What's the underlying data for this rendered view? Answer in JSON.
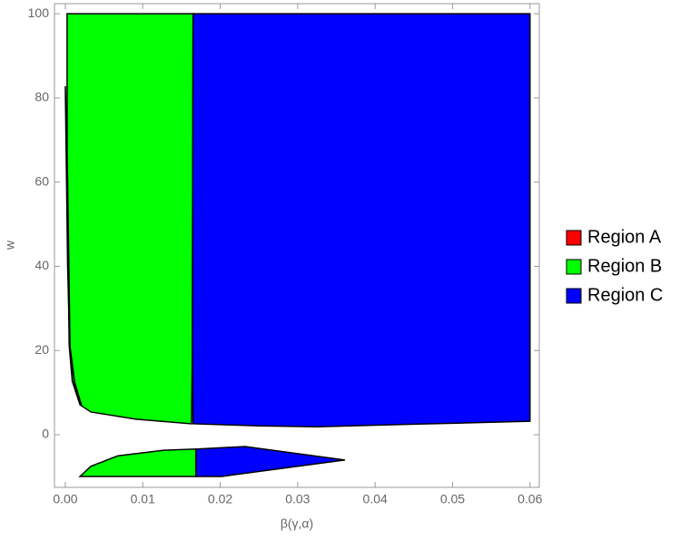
{
  "chart_data": {
    "type": "region",
    "x_label": "β(γ,α)",
    "y_label": "w",
    "xlim": [
      -0.0014,
      0.0612
    ],
    "ylim": [
      -12.5,
      102.4
    ],
    "xticks": [
      {
        "value": 0,
        "label": "0.00"
      },
      {
        "value": 0.01,
        "label": "0.01"
      },
      {
        "value": 0.02,
        "label": "0.02"
      },
      {
        "value": 0.03,
        "label": "0.03"
      },
      {
        "value": 0.04,
        "label": "0.04"
      },
      {
        "value": 0.05,
        "label": "0.05"
      },
      {
        "value": 0.06,
        "label": "0.06"
      }
    ],
    "yticks": [
      0,
      20,
      40,
      60,
      80,
      100
    ],
    "legend": "right",
    "series": [
      {
        "name": "Region B",
        "color": "#00ff00",
        "x": [
          0.00023,
          0.0165,
          0.0164,
          0.0163,
          0.0091,
          0.0033,
          0.0019,
          0.0009,
          0.0005,
          0.00023,
          null,
          0.0019,
          0.01688,
          0.01688,
          0.0127,
          0.0068,
          0.0033
        ],
        "y": [
          100,
          100,
          20,
          2.6,
          3.7,
          5.4,
          7.1,
          12.7,
          21.3,
          60,
          null,
          -9.9,
          -9.9,
          -3.4,
          -3.7,
          -5.0,
          -7.5
        ]
      },
      {
        "name": "Region C",
        "color": "#0000ff",
        "x": [
          0.0165,
          0.06,
          0.06,
          0.045,
          0.0325,
          0.025,
          0.0165,
          0.0164,
          null,
          0.01688,
          0.0202,
          0.0361,
          0.0232,
          0.01688
        ],
        "y": [
          100,
          100,
          3.2,
          2.5,
          1.9,
          2.1,
          2.6,
          20,
          null,
          -9.9,
          -9.9,
          -6.0,
          -2.8,
          -3.4
        ]
      },
      {
        "name": "Region A",
        "color": "#ff0000",
        "x": [
          0,
          0.0003,
          0.0006,
          0.0012,
          0.0021,
          0.0012,
          0.0006,
          0.0003
        ],
        "y": [
          82.8,
          40,
          20,
          12,
          6.9,
          12.5,
          21,
          60
        ]
      }
    ]
  }
}
